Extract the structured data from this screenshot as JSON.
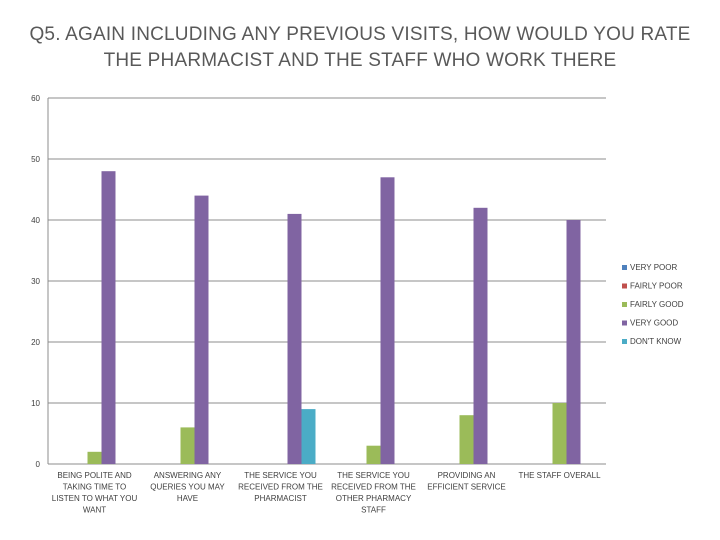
{
  "chart_data": {
    "type": "bar",
    "title_lines": [
      "Q5. AGAIN INCLUDING ANY PREVIOUS VISITS, HOW WOULD YOU RATE",
      "THE PHARMACIST AND THE STAFF WHO WORK THERE"
    ],
    "categories": [
      [
        "BEING POLITE AND",
        "TAKING TIME TO",
        "LISTEN TO WHAT YOU",
        "WANT"
      ],
      [
        "ANSWERING ANY",
        "QUERIES YOU MAY",
        "HAVE"
      ],
      [
        "THE SERVICE YOU",
        "RECEIVED FROM THE",
        "PHARMACIST"
      ],
      [
        "THE SERVICE YOU",
        "RECEIVED FROM THE",
        "OTHER PHARMACY",
        "STAFF"
      ],
      [
        "PROVIDING AN",
        "EFFICIENT SERVICE"
      ],
      [
        "THE STAFF OVERALL"
      ]
    ],
    "series": [
      {
        "name": "VERY POOR",
        "color": "#4f81bd",
        "values": [
          0,
          0,
          0,
          0,
          0,
          0
        ]
      },
      {
        "name": "FAIRLY POOR",
        "color": "#c0504d",
        "values": [
          0,
          0,
          0,
          0,
          0,
          0
        ]
      },
      {
        "name": "FAIRLY GOOD",
        "color": "#9bbb59",
        "values": [
          2,
          6,
          0,
          3,
          8,
          10
        ]
      },
      {
        "name": "VERY GOOD",
        "color": "#8064a2",
        "values": [
          48,
          44,
          41,
          47,
          42,
          40
        ]
      },
      {
        "name": "DON'T KNOW",
        "color": "#4bacc6",
        "values": [
          0,
          0,
          9,
          0,
          0,
          0
        ]
      }
    ],
    "y_ticks": [
      "0",
      "10",
      "20",
      "30",
      "40",
      "50",
      "60"
    ],
    "ylim": [
      0,
      60
    ],
    "gridlines": true,
    "legend_position": "right"
  }
}
